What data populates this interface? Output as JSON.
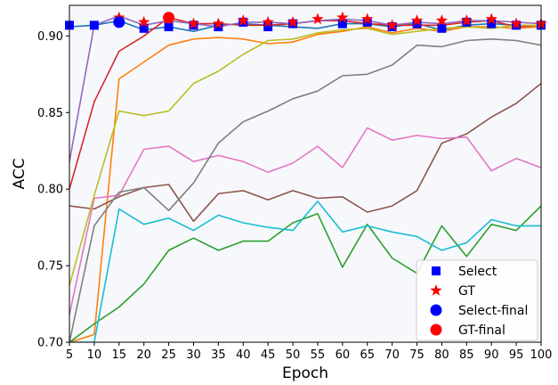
{
  "chart_data": {
    "type": "line",
    "xlabel": "Epoch",
    "ylabel": "ACC",
    "xlim": [
      5,
      100
    ],
    "ylim": [
      0.7,
      0.92
    ],
    "x_ticks": [
      5,
      10,
      15,
      20,
      25,
      30,
      35,
      40,
      45,
      50,
      55,
      60,
      65,
      70,
      75,
      80,
      85,
      90,
      95,
      100
    ],
    "y_ticks": [
      0.7,
      0.75,
      0.8,
      0.85,
      0.9
    ],
    "y_tick_labels": [
      "0.70",
      "0.75",
      "0.80",
      "0.85",
      "0.90"
    ],
    "grid": false,
    "background": "#f7f8fc",
    "x": [
      5,
      10,
      15,
      20,
      25,
      30,
      35,
      40,
      45,
      50,
      55,
      60,
      65,
      70,
      75,
      80,
      85,
      90,
      95,
      100
    ],
    "series": [
      {
        "color": "#1f77b4",
        "values": [
          0.906,
          0.907,
          0.91,
          0.904,
          0.906,
          0.903,
          0.907,
          0.908,
          0.907,
          0.906,
          0.905,
          0.908,
          0.908,
          0.906,
          0.908,
          0.904,
          0.907,
          0.908,
          0.907,
          0.907
        ]
      },
      {
        "color": "#ff7f0e",
        "values": [
          0.7,
          0.705,
          0.872,
          0.883,
          0.894,
          0.898,
          0.899,
          0.898,
          0.895,
          0.896,
          0.901,
          0.903,
          0.906,
          0.902,
          0.905,
          0.903,
          0.906,
          0.906,
          0.905,
          0.906
        ]
      },
      {
        "color": "#2ca02c",
        "values": [
          0.7,
          0.712,
          0.723,
          0.738,
          0.76,
          0.768,
          0.76,
          0.766,
          0.766,
          0.778,
          0.784,
          0.749,
          0.777,
          0.755,
          0.745,
          0.776,
          0.756,
          0.777,
          0.773,
          0.789
        ]
      },
      {
        "color": "#d62728",
        "values": [
          0.8,
          0.857,
          0.89,
          0.9,
          0.912,
          0.908,
          0.908,
          0.907,
          0.907,
          0.908,
          0.91,
          0.91,
          0.908,
          0.907,
          0.907,
          0.907,
          0.909,
          0.91,
          0.906,
          0.907
        ]
      },
      {
        "color": "#9467bd",
        "values": [
          0.818,
          0.907,
          0.913,
          0.907,
          0.91,
          0.908,
          0.906,
          0.909,
          0.909,
          0.908,
          0.91,
          0.911,
          0.91,
          0.907,
          0.909,
          0.908,
          0.91,
          0.91,
          0.909,
          0.908
        ]
      },
      {
        "color": "#8c564b",
        "values": [
          0.789,
          0.787,
          0.795,
          0.801,
          0.803,
          0.779,
          0.797,
          0.799,
          0.793,
          0.799,
          0.794,
          0.795,
          0.785,
          0.789,
          0.799,
          0.83,
          0.836,
          0.847,
          0.856,
          0.869
        ]
      },
      {
        "color": "#e377c2",
        "values": [
          0.718,
          0.794,
          0.796,
          0.826,
          0.828,
          0.818,
          0.822,
          0.818,
          0.811,
          0.817,
          0.828,
          0.814,
          0.84,
          0.832,
          0.835,
          0.833,
          0.834,
          0.812,
          0.82,
          0.814
        ]
      },
      {
        "color": "#7f7f7f",
        "values": [
          0.7,
          0.776,
          0.798,
          0.801,
          0.786,
          0.804,
          0.83,
          0.844,
          0.851,
          0.859,
          0.864,
          0.874,
          0.875,
          0.881,
          0.894,
          0.893,
          0.897,
          0.898,
          0.897,
          0.894
        ]
      },
      {
        "color": "#bcbd22",
        "values": [
          0.737,
          0.796,
          0.851,
          0.848,
          0.851,
          0.869,
          0.877,
          0.888,
          0.897,
          0.898,
          0.902,
          0.904,
          0.905,
          0.901,
          0.903,
          0.905,
          0.906,
          0.905,
          0.907,
          0.907
        ]
      },
      {
        "color": "#17becf",
        "values": [
          0.7,
          0.7,
          0.787,
          0.777,
          0.781,
          0.773,
          0.783,
          0.778,
          0.775,
          0.773,
          0.792,
          0.772,
          0.776,
          0.772,
          0.769,
          0.76,
          0.765,
          0.78,
          0.776,
          0.776
        ]
      }
    ],
    "markers": {
      "select": {
        "label": "Select",
        "color": "#0000ff",
        "x": [
          5,
          10,
          20,
          25,
          30,
          35,
          40,
          45,
          50,
          60,
          65,
          70,
          75,
          80,
          85,
          90,
          95,
          100
        ],
        "y": [
          0.907,
          0.907,
          0.905,
          0.906,
          0.907,
          0.906,
          0.909,
          0.906,
          0.908,
          0.908,
          0.909,
          0.906,
          0.908,
          0.905,
          0.909,
          0.908,
          0.907,
          0.907
        ]
      },
      "gt": {
        "label": "GT",
        "color": "#ff0000",
        "x": [
          15,
          20,
          25,
          30,
          35,
          40,
          45,
          50,
          55,
          60,
          65,
          70,
          75,
          80,
          85,
          90,
          95,
          100
        ],
        "y": [
          0.912,
          0.909,
          0.911,
          0.908,
          0.908,
          0.91,
          0.909,
          0.909,
          0.911,
          0.912,
          0.911,
          0.907,
          0.91,
          0.91,
          0.91,
          0.911,
          0.908,
          0.908
        ]
      },
      "select_final": {
        "label": "Select-final",
        "color": "#0000ff",
        "x": [
          15
        ],
        "y": [
          0.909
        ]
      },
      "gt_final": {
        "label": "GT-final",
        "color": "#ff0000",
        "x": [
          25
        ],
        "y": [
          0.912
        ]
      }
    },
    "legend": {
      "position": "bottom-right",
      "entries": [
        {
          "label": "Select",
          "marker": "square",
          "color": "#0000ff"
        },
        {
          "label": "GT",
          "marker": "star",
          "color": "#ff0000"
        },
        {
          "label": "Select-final",
          "marker": "circle",
          "color": "#0000ff"
        },
        {
          "label": "GT-final",
          "marker": "circle",
          "color": "#ff0000"
        }
      ]
    }
  }
}
